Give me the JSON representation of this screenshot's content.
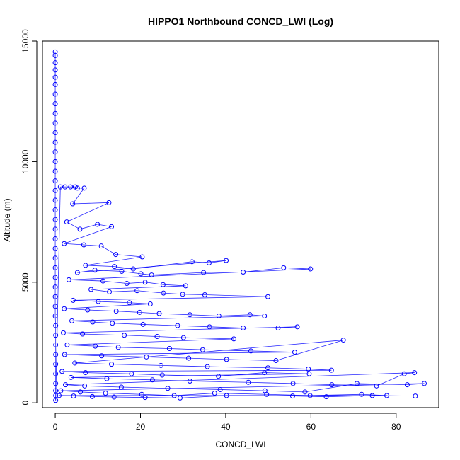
{
  "chart_data": {
    "type": "scatter",
    "title": "HIPPO1 Northbound CONCD_LWI (Log)",
    "xlabel": "CONCD_LWI",
    "ylabel": "Altitude (m)",
    "xlim": [
      -3,
      90
    ],
    "ylim": [
      -200,
      15000
    ],
    "xticks": [
      0,
      20,
      40,
      60,
      80
    ],
    "yticks": [
      0,
      5000,
      10000,
      15000
    ],
    "grid": false,
    "legend": "none",
    "colors": {
      "series": "#0000ff",
      "axes": "#000000",
      "background": "#ffffff"
    },
    "markers": "open-circle",
    "connected_by_lines": true,
    "series": [
      {
        "x": [
          0,
          0,
          0,
          0,
          0,
          0,
          0,
          0,
          0,
          0,
          0,
          0,
          0,
          0,
          0,
          0,
          0,
          0,
          0,
          0,
          0,
          0,
          0,
          0,
          0,
          0,
          0,
          0,
          0,
          0,
          0.1,
          0.1,
          0.1,
          0.1,
          0.1,
          0.1,
          0.1,
          0.1,
          0.1,
          0.1,
          1.2,
          2.3,
          3.6,
          4.7,
          5.2,
          6.8,
          4.1,
          12.6,
          2.7,
          5.8,
          9.9,
          13.2,
          2.1,
          6.7,
          10.8,
          14.2,
          20.4,
          7.1,
          13.9,
          18.3,
          32.1,
          36.1,
          40.1,
          5.2,
          9.3,
          15.6,
          20.1,
          22.6,
          34.8,
          44.1,
          53.6,
          59.9,
          3.2,
          11.2,
          16.8,
          21.1,
          25.3,
          30.6,
          8.4,
          12.7,
          19.2,
          25.4,
          29.9,
          35.1,
          49.9,
          4.2,
          10.1,
          17.4,
          22.3,
          2.1,
          7.6,
          14.3,
          19.8,
          24.4,
          31.6,
          38.4,
          45.7,
          49.1,
          3.9,
          8.8,
          13.4,
          20.6,
          28.7,
          36.2,
          44.1,
          52.3,
          56.8,
          1.9,
          6.4,
          16.2,
          23.9,
          30.1,
          41.9,
          2.8,
          9.4,
          14.8,
          26.8,
          34.6,
          45.9,
          56.2,
          2.2,
          10.9,
          21.4,
          31.3,
          40.2,
          51.8,
          67.6,
          4.6,
          13.2,
          24.8,
          35.7,
          49.9,
          59.4,
          64.8,
          1.6,
          7.1,
          17.9,
          25.1,
          38.3,
          49.1,
          59.6,
          3.7,
          12.1,
          22.8,
          31.6,
          45.3,
          55.8,
          64.9,
          75.4,
          81.9,
          84.3,
          2.4,
          6.9,
          15.5,
          26.4,
          38.7,
          49.2,
          58.6,
          70.8,
          82.6,
          86.6,
          1.3,
          5.9,
          11.8,
          20.3,
          27.9,
          37.4,
          49.6,
          59.8,
          71.9,
          77.8,
          0.9,
          4.3,
          8.7,
          13.8,
          21.1,
          29.3,
          40.2,
          55.7,
          63.6,
          74.4,
          84.5
        ],
        "y": [
          14550,
          14400,
          14100,
          13800,
          13500,
          13200,
          12800,
          12400,
          12000,
          11600,
          11200,
          10800,
          10400,
          10000,
          9600,
          9200,
          8800,
          8400,
          8000,
          7600,
          7200,
          6800,
          6400,
          6000,
          5600,
          5200,
          4800,
          4400,
          4000,
          3600,
          3200,
          2800,
          2400,
          2000,
          1600,
          1200,
          800,
          500,
          300,
          100,
          8950,
          8950,
          8950,
          8950,
          8900,
          8900,
          8250,
          8300,
          7500,
          7200,
          7400,
          7300,
          6600,
          6550,
          6500,
          6150,
          6050,
          5700,
          5650,
          5550,
          5850,
          5800,
          5900,
          5400,
          5500,
          5450,
          5350,
          5300,
          5400,
          5420,
          5600,
          5550,
          5100,
          5050,
          4950,
          5000,
          4900,
          4850,
          4700,
          4600,
          4650,
          4550,
          4500,
          4480,
          4400,
          4250,
          4200,
          4150,
          4100,
          3900,
          3850,
          3800,
          3750,
          3700,
          3650,
          3600,
          3650,
          3600,
          3400,
          3350,
          3300,
          3250,
          3200,
          3150,
          3100,
          3100,
          3150,
          2900,
          2850,
          2800,
          2750,
          2700,
          2650,
          2400,
          2350,
          2300,
          2250,
          2200,
          2150,
          2100,
          2000,
          1950,
          1900,
          1850,
          1800,
          1750,
          2600,
          1650,
          1600,
          1550,
          1500,
          1450,
          1400,
          1350,
          1300,
          1250,
          1200,
          1150,
          1100,
          1250,
          1200,
          1050,
          1000,
          950,
          900,
          850,
          800,
          750,
          700,
          1200,
          1250,
          750,
          700,
          650,
          600,
          550,
          500,
          450,
          800,
          750,
          800,
          500,
          450,
          400,
          350,
          300,
          400,
          350,
          300,
          350,
          300,
          300,
          280,
          260,
          240,
          220,
          200,
          300,
          280,
          250,
          300,
          280
        ]
      }
    ]
  }
}
